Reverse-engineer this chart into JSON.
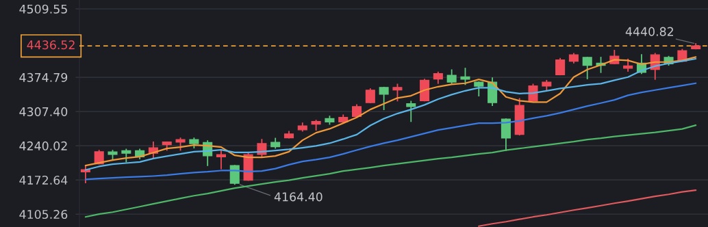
{
  "chart_data": {
    "type": "candlestick",
    "categories": [
      null,
      null,
      null,
      null,
      null,
      null,
      null,
      null,
      null,
      null,
      null,
      null,
      null,
      null,
      null,
      null,
      null,
      null,
      null,
      null,
      null,
      null,
      null,
      null,
      null,
      null,
      null,
      null,
      null,
      null,
      null,
      null,
      null,
      null,
      null,
      null,
      null,
      null,
      null,
      null,
      null,
      null,
      null,
      null,
      null,
      null
    ],
    "ohlc": [
      [
        4188.8,
        4199.6,
        4167.3,
        4192.9
      ],
      [
        4204.6,
        4230.6,
        4204.6,
        4228.3
      ],
      [
        4227.9,
        4230.6,
        4211.7,
        4223.0
      ],
      [
        4230.2,
        4232.9,
        4208.5,
        4225.2
      ],
      [
        4230.2,
        4232.9,
        4214.6,
        4218.1
      ],
      [
        4225.2,
        4247.2,
        4217.1,
        4236.0
      ],
      [
        4242.2,
        4247.2,
        4231.5,
        4247.2
      ],
      [
        4247.2,
        4254.9,
        4231.5,
        4252.2
      ],
      [
        4252.2,
        4254.9,
        4236.0,
        4244.2
      ],
      [
        4246.3,
        4249.5,
        4201.3,
        4220.2
      ],
      [
        4218.1,
        4230.6,
        4195.0,
        4222.5
      ],
      [
        4200.9,
        4200.9,
        4164.4,
        4166.0
      ],
      [
        4172.2,
        4225.2,
        4172.2,
        4222.5
      ],
      [
        4223.0,
        4252.2,
        4217.1,
        4244.2
      ],
      [
        4246.8,
        4254.4,
        4235.4,
        4238.2
      ],
      [
        4255.6,
        4267.9,
        4255.6,
        4263.2
      ],
      [
        4271.4,
        4284.5,
        4269.1,
        4279.1
      ],
      [
        4282.6,
        4289.9,
        4271.0,
        4287.9
      ],
      [
        4293.5,
        4298.0,
        4282.6,
        4286.8
      ],
      [
        4286.8,
        4300.3,
        4286.8,
        4295.7
      ],
      [
        4297.8,
        4320.4,
        4297.8,
        4317.2
      ],
      [
        4324.9,
        4351.9,
        4324.9,
        4349.5
      ],
      [
        4354.9,
        4354.9,
        4311.4,
        4341.4
      ],
      [
        4349.9,
        4360.9,
        4328.6,
        4354.9
      ],
      [
        4322.7,
        4327.2,
        4288.1,
        4317.3
      ],
      [
        4328.6,
        4370.7,
        4328.6,
        4369.0
      ],
      [
        4371.3,
        4384.7,
        4363.1,
        4382.0
      ],
      [
        4378.8,
        4389.2,
        4363.1,
        4365.3
      ],
      [
        4375.7,
        4392.3,
        4360.9,
        4371.2
      ],
      [
        4365.3,
        4365.3,
        4338.4,
        4357.3
      ],
      [
        4365.3,
        4373.4,
        4319.5,
        4324.9
      ],
      [
        4292.6,
        4292.6,
        4230.6,
        4255.3
      ],
      [
        4262.4,
        4332.6,
        4261.5,
        4319.5
      ],
      [
        4328.4,
        4360.9,
        4328.4,
        4357.9
      ],
      [
        4357.6,
        4368.4,
        4349.5,
        4365.3
      ],
      [
        4380.0,
        4411.6,
        4380.0,
        4408.9
      ],
      [
        4406.5,
        4421.5,
        4403.5,
        4419.1
      ],
      [
        4413.9,
        4413.9,
        4372.1,
        4398.2
      ],
      [
        4402.7,
        4413.9,
        4384.6,
        4398.2
      ],
      [
        4401.7,
        4427.6,
        4401.7,
        4416.5
      ],
      [
        4392.6,
        4410.2,
        4387.0,
        4397.1
      ],
      [
        4402.7,
        4419.1,
        4382.4,
        4384.6
      ],
      [
        4390.1,
        4421.5,
        4371.1,
        4419.1
      ],
      [
        4413.9,
        4415.7,
        4398.9,
        4401.3
      ],
      [
        4406.5,
        4429.4,
        4406.5,
        4427.0
      ],
      [
        4431.0,
        4440.82,
        4431.0,
        4436.52
      ]
    ],
    "colors": [
      "#ee4a58",
      "#ee4a58",
      "#5dc87c",
      "#5dc87c",
      "#5dc87c",
      "#ee4a58",
      "#ee4a58",
      "#ee4a58",
      "#5dc87c",
      "#5dc87c",
      "#ee4a58",
      "#5dc87c",
      "#ee4a58",
      "#ee4a58",
      "#5dc87c",
      "#ee4a58",
      "#ee4a58",
      "#ee4a58",
      "#5dc87c",
      "#ee4a58",
      "#ee4a58",
      "#ee4a58",
      "#5dc87c",
      "#ee4a58",
      "#5dc87c",
      "#ee4a58",
      "#ee4a58",
      "#5dc87c",
      "#5dc87c",
      "#5dc87c",
      "#5dc87c",
      "#5dc87c",
      "#ee4a58",
      "#ee4a58",
      "#ee4a58",
      "#ee4a58",
      "#ee4a58",
      "#5dc87c",
      "#5dc87c",
      "#ee4a58",
      "#ee4a58",
      "#5dc87c",
      "#ee4a58",
      "#5dc87c",
      "#ee4a58",
      "#ee4a58"
    ],
    "series": [
      {
        "type": "line",
        "color": "#f0993a",
        "values": [
          4200.9,
          4206.3,
          4211.7,
          4215.8,
          4218.5,
          4226.5,
          4234.6,
          4237.3,
          4241.4,
          4240.0,
          4237.3,
          4221.1,
          4217.1,
          4217.1,
          4219.8,
          4228.3,
          4250.8,
          4265.6,
          4273.3,
          4284.5,
          4295.7,
          4311.4,
          4322.6,
          4334.0,
          4338.4,
          4349.6,
          4356.3,
          4360.9,
          4363.1,
          4370.7,
          4364.0,
          4336.1,
          4328.6,
          4325.9,
          4325.9,
          4342.8,
          4375.2,
          4390.0,
          4399.0,
          4409.4,
          4408.1,
          4400.4,
          4404.8,
          4404.8,
          4408.1,
          4414.8
        ]
      },
      {
        "type": "line",
        "color": "#5ab6e8",
        "values": [
          4192.4,
          4199.2,
          4203.6,
          4205.9,
          4208.1,
          4214.8,
          4219.4,
          4223.9,
          4228.3,
          4229.6,
          4231.9,
          4227.0,
          4227.0,
          4228.3,
          4230.6,
          4232.9,
          4236.0,
          4239.6,
          4245.0,
          4253.1,
          4262.0,
          4280.0,
          4293.5,
          4303.4,
          4311.4,
          4320.5,
          4331.7,
          4340.7,
          4348.2,
          4354.2,
          4354.2,
          4346.5,
          4342.8,
          4343.8,
          4348.2,
          4352.8,
          4356.3,
          4360.0,
          4362.3,
          4369.0,
          4375.2,
          4387.9,
          4396.8,
          4402.1,
          4406.7,
          4411.2
        ]
      },
      {
        "type": "line",
        "color": "#3b7be6",
        "values": [
          4173.6,
          4175.3,
          4176.7,
          4178.0,
          4179.0,
          4180.3,
          4182.1,
          4184.8,
          4187.1,
          4188.8,
          4191.1,
          4191.1,
          4189.2,
          4190.2,
          4194.9,
          4202.7,
          4209.0,
          4212.7,
          4217.1,
          4223.9,
          4231.5,
          4238.7,
          4245.0,
          4250.8,
          4257.5,
          4264.3,
          4271.0,
          4275.5,
          4280.0,
          4284.5,
          4284.5,
          4285.4,
          4288.9,
          4294.3,
          4298.9,
          4304.7,
          4311.4,
          4318.2,
          4324.0,
          4330.3,
          4339.3,
          4345.1,
          4349.6,
          4354.2,
          4358.6,
          4363.1
        ]
      },
      {
        "type": "line",
        "color": "#4fb868",
        "values": [
          4099.9,
          4105.3,
          4109.3,
          4114.7,
          4120.1,
          4125.5,
          4130.9,
          4136.3,
          4141.6,
          4145.7,
          4151.1,
          4156.5,
          4160.5,
          4164.6,
          4168.6,
          4172.0,
          4176.7,
          4180.7,
          4184.8,
          4190.2,
          4193.5,
          4196.9,
          4200.9,
          4204.3,
          4207.7,
          4211.1,
          4214.4,
          4217.1,
          4220.5,
          4223.9,
          4226.5,
          4231.3,
          4234.6,
          4238.0,
          4241.4,
          4244.7,
          4248.1,
          4252.2,
          4254.8,
          4258.2,
          4260.9,
          4263.6,
          4266.3,
          4269.7,
          4273.0,
          4280.5
        ]
      },
      {
        "type": "line",
        "color": "#e05a5e",
        "values": [
          null,
          null,
          null,
          null,
          null,
          null,
          null,
          null,
          null,
          null,
          null,
          null,
          null,
          null,
          null,
          null,
          null,
          null,
          null,
          null,
          null,
          null,
          null,
          null,
          null,
          null,
          null,
          null,
          null,
          4081.7,
          4086.4,
          4090.4,
          4095.2,
          4099.9,
          4103.9,
          4108.6,
          4113.3,
          4117.4,
          4122.1,
          4126.8,
          4130.9,
          4135.6,
          4140.3,
          4144.3,
          4149.1,
          4152.4
        ]
      }
    ],
    "ylim": [
      4080,
      4527
    ],
    "yticks": [
      4105.26,
      4172.64,
      4240.02,
      {
        "value": 4307.4,
        "label": "4307.40"
      },
      4374.79,
      4509.55
    ],
    "ref_lines": [
      {
        "axis": "y",
        "value": 4436.52,
        "label": "4436.52",
        "color": "#f0a23a",
        "line_style": "dashed"
      }
    ],
    "annotations": [
      {
        "text": "4440.82",
        "y": 4440.82
      },
      "4164.40"
    ],
    "grid": "y",
    "tick_labels": "y"
  }
}
